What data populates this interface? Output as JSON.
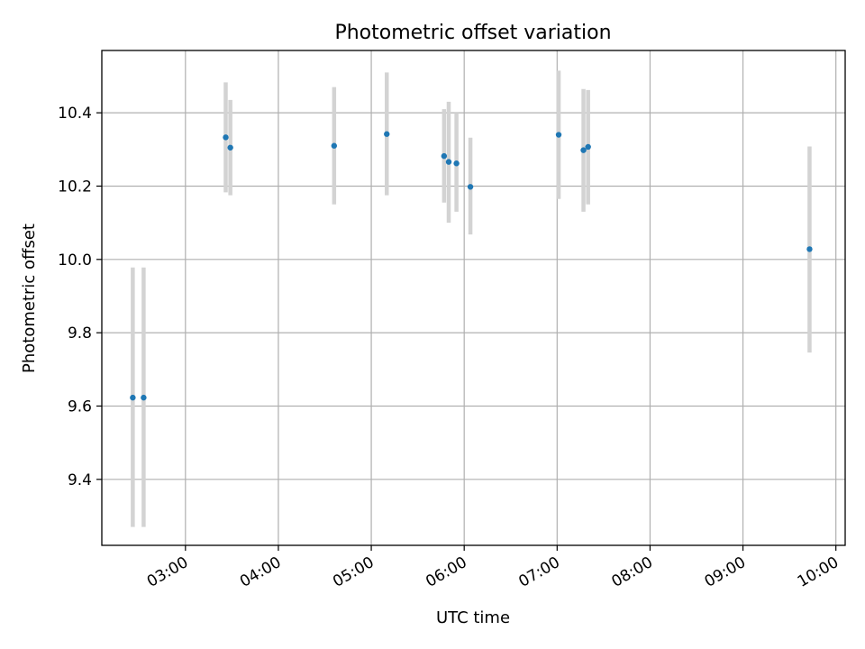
{
  "chart_data": {
    "type": "scatter",
    "title": "Photometric offset variation",
    "xlabel": "UTC time",
    "ylabel": "Photometric offset",
    "x_tick_labels": [
      "03:00",
      "04:00",
      "05:00",
      "06:00",
      "07:00",
      "08:00",
      "09:00",
      "10:00"
    ],
    "x_ticks": [
      "03:00",
      "04:00",
      "05:00",
      "06:00",
      "07:00",
      "08:00",
      "09:00",
      "10:00"
    ],
    "y_tick_labels": [
      "9.4",
      "9.6",
      "9.8",
      "10.0",
      "10.2",
      "10.4"
    ],
    "y_ticks": [
      9.4,
      9.6,
      9.8,
      10.0,
      10.2,
      10.4
    ],
    "xlim": [
      "02:06",
      "10:06"
    ],
    "ylim": [
      9.22,
      10.57
    ],
    "grid": true,
    "series": [
      {
        "marker_color": "#1f77b4",
        "errorbar_color": "#d3d3d3",
        "points": [
          {
            "x": "02:26",
            "y": 9.623,
            "yerr_low": 9.27,
            "yerr_high": 9.978
          },
          {
            "x": "02:33",
            "y": 9.623,
            "yerr_low": 9.27,
            "yerr_high": 9.978
          },
          {
            "x": "03:26",
            "y": 10.333,
            "yerr_low": 10.183,
            "yerr_high": 10.483
          },
          {
            "x": "03:29",
            "y": 10.305,
            "yerr_low": 10.175,
            "yerr_high": 10.435
          },
          {
            "x": "04:36",
            "y": 10.31,
            "yerr_low": 10.15,
            "yerr_high": 10.47
          },
          {
            "x": "05:10",
            "y": 10.342,
            "yerr_low": 10.175,
            "yerr_high": 10.51
          },
          {
            "x": "05:47",
            "y": 10.282,
            "yerr_low": 10.155,
            "yerr_high": 10.41
          },
          {
            "x": "05:50",
            "y": 10.266,
            "yerr_low": 10.1,
            "yerr_high": 10.43
          },
          {
            "x": "05:55",
            "y": 10.262,
            "yerr_low": 10.13,
            "yerr_high": 10.4
          },
          {
            "x": "06:04",
            "y": 10.198,
            "yerr_low": 10.068,
            "yerr_high": 10.332
          },
          {
            "x": "07:01",
            "y": 10.34,
            "yerr_low": 10.165,
            "yerr_high": 10.515
          },
          {
            "x": "07:17",
            "y": 10.298,
            "yerr_low": 10.13,
            "yerr_high": 10.465
          },
          {
            "x": "07:20",
            "y": 10.307,
            "yerr_low": 10.15,
            "yerr_high": 10.462
          },
          {
            "x": "09:43",
            "y": 10.028,
            "yerr_low": 9.746,
            "yerr_high": 10.308
          }
        ]
      }
    ]
  }
}
